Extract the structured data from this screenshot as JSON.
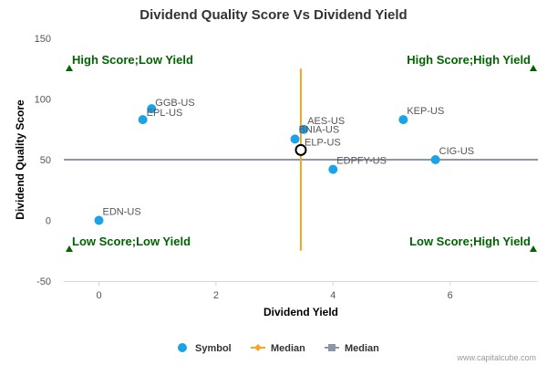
{
  "chart_data": {
    "type": "scatter",
    "title": "Dividend Quality Score Vs Dividend Yield",
    "xlabel": "Dividend Yield",
    "ylabel": "Dividend Quality Score",
    "xlim": [
      -0.6,
      7.5
    ],
    "ylim": [
      -50,
      150
    ],
    "xticks": [
      0,
      2,
      4,
      6
    ],
    "yticks": [
      -50,
      0,
      50,
      100,
      150
    ],
    "grid": false,
    "legend_placement": "bottom",
    "series": [
      {
        "name": "Symbol",
        "color": "#1aa3e8",
        "points": [
          {
            "label": "GGB-US",
            "x": 0.9,
            "y": 92
          },
          {
            "label": "EPL-US",
            "x": 0.75,
            "y": 83
          },
          {
            "label": "EDN-US",
            "x": 0.0,
            "y": 0
          },
          {
            "label": "AES-US",
            "x": 3.5,
            "y": 75
          },
          {
            "label": "BNIA-US",
            "x": 3.35,
            "y": 67
          },
          {
            "label": "EDPFY-US",
            "x": 4.0,
            "y": 42
          },
          {
            "label": "KEP-US",
            "x": 5.2,
            "y": 83
          },
          {
            "label": "CIG-US",
            "x": 5.75,
            "y": 50
          }
        ]
      }
    ],
    "highlight_point": {
      "label": "ELP-US",
      "x": 3.45,
      "y": 58
    },
    "median_x": {
      "name": "Median",
      "value": 3.45,
      "y_range": [
        -25,
        125
      ],
      "color": "#f5a623"
    },
    "median_y": {
      "name": "Median",
      "value": 50,
      "color": "#8c96a8"
    },
    "quadrants": [
      {
        "label": "High Score;Low Yield",
        "pos": "top-left"
      },
      {
        "label": "High Score;High Yield",
        "pos": "top-right"
      },
      {
        "label": "Low Score;Low Yield",
        "pos": "bottom-left"
      },
      {
        "label": "Low Score;High Yield",
        "pos": "bottom-right"
      }
    ],
    "quadrant_marker_color": "#006400"
  },
  "credit": "www.capitalcube.com"
}
